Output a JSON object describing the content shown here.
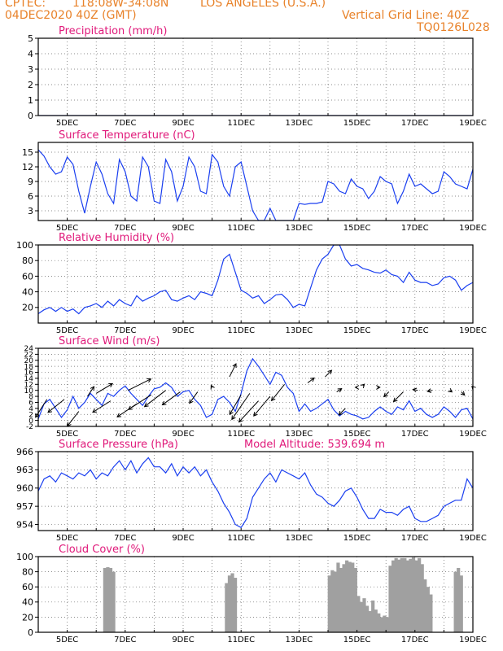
{
  "header": {
    "center": "CPTEC:",
    "coords": "118:08W-34:08N",
    "location": "LOS ANGELES (U.S.A.)",
    "date": "04DEC2020 40Z (GMT)",
    "grid_note": "Vertical Grid Line: 40Z",
    "code": "TQ0126L028"
  },
  "colors": {
    "header": "#e8822a",
    "title": "#e0197a",
    "line": "#1a3ff0",
    "bar": "#a0a0a0",
    "arrow": "#000000",
    "grid": "#666666"
  },
  "x_ticks": [
    "5DEC",
    "7DEC",
    "9DEC",
    "11DEC",
    "13DEC",
    "15DEC",
    "17DEC",
    "19DEC"
  ],
  "chart_data": [
    {
      "type": "line",
      "title": "Precipitation (mm/h)",
      "ylim": [
        0,
        5
      ],
      "yticks": [
        0,
        1,
        2,
        3,
        4,
        5
      ],
      "grid": true,
      "x": [
        4.0,
        19.0
      ],
      "values": [
        0,
        0
      ]
    },
    {
      "type": "line",
      "title": "Surface Temperature (nC)",
      "ylim": [
        1,
        17
      ],
      "yticks": [
        3,
        6,
        9,
        12,
        15
      ],
      "grid": true,
      "x": [
        4.0,
        4.2,
        4.4,
        4.6,
        4.8,
        5.0,
        5.2,
        5.4,
        5.6,
        5.8,
        6.0,
        6.2,
        6.4,
        6.6,
        6.8,
        7.0,
        7.2,
        7.4,
        7.6,
        7.8,
        8.0,
        8.2,
        8.4,
        8.6,
        8.8,
        9.0,
        9.2,
        9.4,
        9.6,
        9.8,
        10.0,
        10.2,
        10.4,
        10.6,
        10.8,
        11.0,
        11.2,
        11.4,
        11.6,
        11.8,
        12.0,
        12.2,
        12.4,
        12.6,
        12.8,
        13.0,
        13.2,
        13.4,
        13.6,
        13.8,
        14.0,
        14.2,
        14.4,
        14.6,
        14.8,
        15.0,
        15.2,
        15.4,
        15.6,
        15.8,
        16.0,
        16.2,
        16.4,
        16.6,
        16.8,
        17.0,
        17.2,
        17.4,
        17.6,
        17.8,
        18.0,
        18.2,
        18.4,
        18.6,
        18.8,
        19.0
      ],
      "values": [
        15.5,
        14.2,
        12.0,
        10.5,
        11.0,
        14.0,
        12.5,
        7.0,
        2.5,
        8.0,
        13.0,
        10.5,
        6.5,
        4.5,
        13.5,
        11.0,
        6.0,
        5.0,
        14.0,
        12.0,
        5.0,
        4.5,
        13.5,
        11.0,
        5.0,
        8.0,
        14.0,
        12.0,
        7.0,
        6.5,
        14.5,
        13.0,
        8.0,
        6.0,
        12.0,
        13.0,
        8.0,
        3.0,
        1.0,
        1.0,
        3.5,
        1.0,
        1.0,
        1.0,
        1.0,
        4.5,
        4.3,
        4.5,
        4.5,
        4.8,
        9.0,
        8.5,
        7.0,
        6.5,
        9.5,
        8.0,
        7.5,
        5.5,
        7.0,
        10.0,
        9.0,
        8.5,
        4.5,
        7.0,
        10.5,
        8.0,
        8.5,
        7.5,
        6.5,
        7.0,
        11.0,
        10.0,
        8.5,
        8.0,
        7.5,
        11.5
      ]
    },
    {
      "type": "line",
      "title": "Relative Humidity (%)",
      "ylim": [
        0,
        100
      ],
      "yticks": [
        20,
        40,
        60,
        80,
        100
      ],
      "grid": true,
      "x": [
        4.0,
        4.2,
        4.4,
        4.6,
        4.8,
        5.0,
        5.2,
        5.4,
        5.6,
        5.8,
        6.0,
        6.2,
        6.4,
        6.6,
        6.8,
        7.0,
        7.2,
        7.4,
        7.6,
        7.8,
        8.0,
        8.2,
        8.4,
        8.6,
        8.8,
        9.0,
        9.2,
        9.4,
        9.6,
        9.8,
        10.0,
        10.2,
        10.4,
        10.6,
        10.8,
        11.0,
        11.2,
        11.4,
        11.6,
        11.8,
        12.0,
        12.2,
        12.4,
        12.6,
        12.8,
        13.0,
        13.2,
        13.4,
        13.6,
        13.8,
        14.0,
        14.2,
        14.4,
        14.6,
        14.8,
        15.0,
        15.2,
        15.4,
        15.6,
        15.8,
        16.0,
        16.2,
        16.4,
        16.6,
        16.8,
        17.0,
        17.2,
        17.4,
        17.6,
        17.8,
        18.0,
        18.2,
        18.4,
        18.6,
        18.8,
        19.0
      ],
      "values": [
        12,
        17,
        20,
        15,
        20,
        15,
        18,
        12,
        20,
        22,
        25,
        20,
        28,
        22,
        30,
        25,
        22,
        35,
        28,
        32,
        35,
        40,
        42,
        30,
        28,
        32,
        35,
        30,
        40,
        38,
        35,
        55,
        82,
        88,
        65,
        42,
        38,
        32,
        35,
        25,
        30,
        36,
        37,
        30,
        20,
        24,
        22,
        45,
        68,
        82,
        88,
        100,
        100,
        82,
        73,
        75,
        70,
        68,
        65,
        64,
        68,
        62,
        60,
        52,
        65,
        55,
        52,
        52,
        48,
        50,
        58,
        60,
        55,
        42,
        48,
        52
      ]
    },
    {
      "type": "line",
      "title": "Surface Wind (m/s)",
      "ylim": [
        -2,
        24
      ],
      "yticks": [
        -2,
        0,
        2,
        4,
        6,
        8,
        10,
        12,
        14,
        16,
        18,
        20,
        22,
        24
      ],
      "grid": true,
      "x": [
        4.0,
        4.2,
        4.4,
        4.6,
        4.8,
        5.0,
        5.2,
        5.4,
        5.6,
        5.8,
        6.0,
        6.2,
        6.4,
        6.6,
        6.8,
        7.0,
        7.2,
        7.4,
        7.6,
        7.8,
        8.0,
        8.2,
        8.4,
        8.6,
        8.8,
        9.0,
        9.2,
        9.4,
        9.6,
        9.8,
        10.0,
        10.2,
        10.4,
        10.6,
        10.8,
        11.0,
        11.2,
        11.4,
        11.6,
        11.8,
        12.0,
        12.2,
        12.4,
        12.6,
        12.8,
        13.0,
        13.2,
        13.4,
        13.6,
        13.8,
        14.0,
        14.2,
        14.4,
        14.6,
        14.8,
        15.0,
        15.2,
        15.4,
        15.6,
        15.8,
        16.0,
        16.2,
        16.4,
        16.6,
        16.8,
        17.0,
        17.2,
        17.4,
        17.6,
        17.8,
        18.0,
        18.2,
        18.4,
        18.6,
        18.8,
        19.0
      ],
      "values": [
        0.5,
        5.5,
        7.0,
        4.0,
        1.0,
        3.5,
        8.0,
        4.0,
        6.0,
        9.0,
        7.0,
        5.0,
        9.0,
        8.0,
        10.0,
        11.5,
        9.0,
        7.0,
        5.0,
        8.0,
        10.5,
        11.0,
        12.5,
        11.0,
        8.0,
        9.5,
        10.0,
        7.0,
        5.0,
        1.0,
        2.0,
        7.0,
        8.0,
        6.0,
        3.0,
        9.0,
        16.5,
        20.5,
        18.0,
        15.0,
        12.0,
        16.0,
        15.0,
        11.0,
        9.0,
        3.0,
        5.5,
        3.0,
        4.0,
        5.5,
        7.0,
        3.5,
        1.5,
        3.0,
        2.0,
        1.5,
        0.5,
        1.0,
        3.0,
        4.5,
        3.0,
        2.0,
        4.5,
        3.5,
        6.5,
        3.0,
        4.0,
        2.0,
        1.0,
        2.0,
        4.5,
        3.0,
        1.0,
        3.5,
        4.0,
        0.5
      ],
      "arrows": [
        {
          "x": 4.3,
          "y": 7.0,
          "dx": -3.5,
          "dy": -5.5
        },
        {
          "x": 4.9,
          "y": 7.0,
          "dx": -5,
          "dy": -4
        },
        {
          "x": 5.4,
          "y": 3.0,
          "dx": -3.5,
          "dy": -4.5
        },
        {
          "x": 5.7,
          "y": 8.0,
          "dx": 2,
          "dy": 3
        },
        {
          "x": 6.0,
          "y": 9.0,
          "dx": 5,
          "dy": 3
        },
        {
          "x": 6.5,
          "y": 6.5,
          "dx": -5.5,
          "dy": -3.5
        },
        {
          "x": 7.1,
          "y": 10.0,
          "dx": 7,
          "dy": 3.5
        },
        {
          "x": 7.4,
          "y": 5.5,
          "dx": -6,
          "dy": -4
        },
        {
          "x": 7.9,
          "y": 8.5,
          "dx": -7,
          "dy": -4.5
        },
        {
          "x": 8.4,
          "y": 10.0,
          "dx": -6.5,
          "dy": -5
        },
        {
          "x": 8.9,
          "y": 9.5,
          "dx": -5.5,
          "dy": -4
        },
        {
          "x": 9.5,
          "y": 9.5,
          "dx": -2.5,
          "dy": -3.5
        },
        {
          "x": 10.0,
          "y": 11.0,
          "dx": -0.3,
          "dy": 0.6
        },
        {
          "x": 10.6,
          "y": 14.5,
          "dx": 2,
          "dy": 4
        },
        {
          "x": 11.0,
          "y": 8.5,
          "dx": -3.5,
          "dy": -6
        },
        {
          "x": 11.3,
          "y": 9.0,
          "dx": -5.5,
          "dy": -8
        },
        {
          "x": 11.6,
          "y": 6.5,
          "dx": -6,
          "dy": -6.5
        },
        {
          "x": 12.0,
          "y": 8.0,
          "dx": -5,
          "dy": -6
        },
        {
          "x": 12.5,
          "y": 12.0,
          "dx": -4,
          "dy": -5
        },
        {
          "x": 13.3,
          "y": 12.5,
          "dx": 2,
          "dy": 1.5
        },
        {
          "x": 13.9,
          "y": 14.5,
          "dx": 2,
          "dy": 2
        },
        {
          "x": 14.3,
          "y": 9.5,
          "dx": 1.5,
          "dy": 1
        },
        {
          "x": 14.6,
          "y": 4.0,
          "dx": -2,
          "dy": -2
        },
        {
          "x": 15.0,
          "y": 11.0,
          "dx": -0.5,
          "dy": 0
        },
        {
          "x": 15.2,
          "y": 11.5,
          "dx": 0.5,
          "dy": 0.5
        },
        {
          "x": 15.7,
          "y": 11.0,
          "dx": 0.8,
          "dy": 0
        },
        {
          "x": 16.1,
          "y": 9.5,
          "dx": -1.5,
          "dy": -1.5
        },
        {
          "x": 16.6,
          "y": 9.5,
          "dx": -3,
          "dy": -3
        },
        {
          "x": 17.1,
          "y": 10.0,
          "dx": -1.5,
          "dy": 0.3
        },
        {
          "x": 17.6,
          "y": 10.0,
          "dx": -1.5,
          "dy": -0.3
        },
        {
          "x": 18.2,
          "y": 10.0,
          "dx": 0.7,
          "dy": -0.5
        },
        {
          "x": 18.6,
          "y": 9.5,
          "dx": 1,
          "dy": -1
        },
        {
          "x": 19.0,
          "y": 11.0,
          "dx": -0.3,
          "dy": 0.3
        }
      ]
    },
    {
      "type": "line",
      "title": "Surface Pressure (hPa)",
      "annotation": "Model Altitude: 539.694 m",
      "ylim": [
        953,
        966
      ],
      "yticks": [
        954,
        957,
        960,
        963,
        966
      ],
      "grid": true,
      "x": [
        4.0,
        4.2,
        4.4,
        4.6,
        4.8,
        5.0,
        5.2,
        5.4,
        5.6,
        5.8,
        6.0,
        6.2,
        6.4,
        6.6,
        6.8,
        7.0,
        7.2,
        7.4,
        7.6,
        7.8,
        8.0,
        8.2,
        8.4,
        8.6,
        8.8,
        9.0,
        9.2,
        9.4,
        9.6,
        9.8,
        10.0,
        10.2,
        10.4,
        10.6,
        10.8,
        11.0,
        11.2,
        11.4,
        11.6,
        11.8,
        12.0,
        12.2,
        12.4,
        12.6,
        12.8,
        13.0,
        13.2,
        13.4,
        13.6,
        13.8,
        14.0,
        14.2,
        14.4,
        14.6,
        14.8,
        15.0,
        15.2,
        15.4,
        15.6,
        15.8,
        16.0,
        16.2,
        16.4,
        16.6,
        16.8,
        17.0,
        17.2,
        17.4,
        17.6,
        17.8,
        18.0,
        18.2,
        18.4,
        18.6,
        18.8,
        19.0
      ],
      "values": [
        959.5,
        961.5,
        962.0,
        961.0,
        962.5,
        962.0,
        961.5,
        962.5,
        962.0,
        963.0,
        961.5,
        962.5,
        962.0,
        963.5,
        964.5,
        963.0,
        964.5,
        962.5,
        964.0,
        965.0,
        963.5,
        963.5,
        962.5,
        964.0,
        962.0,
        963.5,
        962.5,
        963.5,
        962.0,
        963.0,
        961.0,
        959.5,
        957.5,
        956.0,
        954.0,
        953.5,
        955.0,
        958.5,
        960.0,
        961.5,
        962.5,
        961.0,
        963.0,
        962.5,
        962.0,
        961.5,
        962.5,
        960.5,
        959.0,
        958.5,
        957.5,
        957.0,
        958.0,
        959.5,
        960.0,
        958.5,
        956.5,
        955.0,
        955.0,
        956.5,
        956.0,
        956.0,
        955.5,
        956.5,
        957.0,
        955.0,
        954.5,
        954.5,
        955.0,
        955.5,
        957.0,
        957.5,
        958.0,
        958.0,
        961.5,
        960.0
      ]
    },
    {
      "type": "bar",
      "title": "Cloud Cover (%)",
      "ylim": [
        0,
        100
      ],
      "yticks": [
        0,
        20,
        40,
        60,
        80,
        100
      ],
      "grid": true,
      "x": [
        6.3,
        6.4,
        6.5,
        6.6,
        10.5,
        10.6,
        10.7,
        10.8,
        14.05,
        14.15,
        14.25,
        14.35,
        14.45,
        14.55,
        14.65,
        14.75,
        14.85,
        14.95,
        15.05,
        15.15,
        15.25,
        15.35,
        15.45,
        15.55,
        15.65,
        15.75,
        15.85,
        15.95,
        16.05,
        16.15,
        16.25,
        16.35,
        16.45,
        16.55,
        16.65,
        16.75,
        16.85,
        16.95,
        17.05,
        17.15,
        17.25,
        17.35,
        17.45,
        17.55,
        18.4,
        18.5,
        18.6
      ],
      "values": [
        85,
        86,
        85,
        80,
        65,
        75,
        78,
        72,
        75,
        82,
        80,
        92,
        85,
        90,
        95,
        93,
        92,
        85,
        48,
        40,
        45,
        35,
        28,
        42,
        30,
        25,
        20,
        22,
        20,
        88,
        95,
        98,
        96,
        98,
        98,
        95,
        97,
        99,
        95,
        98,
        90,
        70,
        60,
        50,
        80,
        85,
        75
      ]
    }
  ]
}
